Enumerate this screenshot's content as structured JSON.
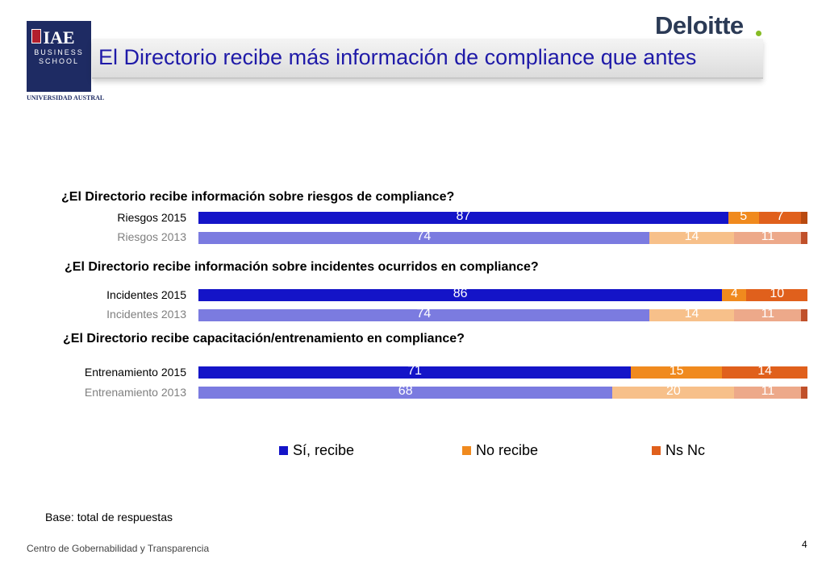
{
  "header": {
    "title": "El Directorio recibe más información de compliance que antes",
    "iae_logo_main": "IAE",
    "iae_logo_line1": "BUSINESS",
    "iae_logo_line2": "SCHOOL",
    "university": "UNIVERSIDAD AUSTRAL",
    "deloitte": "Deloitte"
  },
  "colors": {
    "si_2015": "#1414c8",
    "si_2013": "#7b7be0",
    "no_2015": "#f08a1e",
    "no_2013": "#f7c08a",
    "nsnc_2015": "#e0601c",
    "nsnc_2013": "#eda98a",
    "title": "#1f1aa8"
  },
  "chart_data": {
    "type": "bar",
    "orientation": "horizontal",
    "stacked": true,
    "questions": [
      "¿El Directorio recibe información sobre riesgos de compliance?",
      "¿El Directorio recibe información sobre incidentes ocurridos en compliance?",
      "¿El Directorio recibe capacitación/entrenamiento en compliance?"
    ],
    "categories": [
      "Riesgos 2015",
      "Riesgos 2013",
      "Incidentes 2015",
      "Incidentes 2013",
      "Entrenamiento 2015",
      "Entrenamiento 2013"
    ],
    "series": [
      {
        "name": "Sí, recibe",
        "values": [
          87,
          74,
          86,
          74,
          71,
          68
        ]
      },
      {
        "name": "No recibe",
        "values": [
          5,
          14,
          4,
          14,
          15,
          20
        ]
      },
      {
        "name": "Ns Nc",
        "values": [
          7,
          11,
          10,
          11,
          14,
          11
        ]
      }
    ],
    "legend_position": "bottom",
    "grid": false
  },
  "legend": [
    "Sí, recibe",
    "No recibe",
    "Ns Nc"
  ],
  "footer": {
    "base_note": "Base: total de respuestas",
    "center": "Centro de Gobernabilidad y Transparencia",
    "page_number": "4"
  }
}
